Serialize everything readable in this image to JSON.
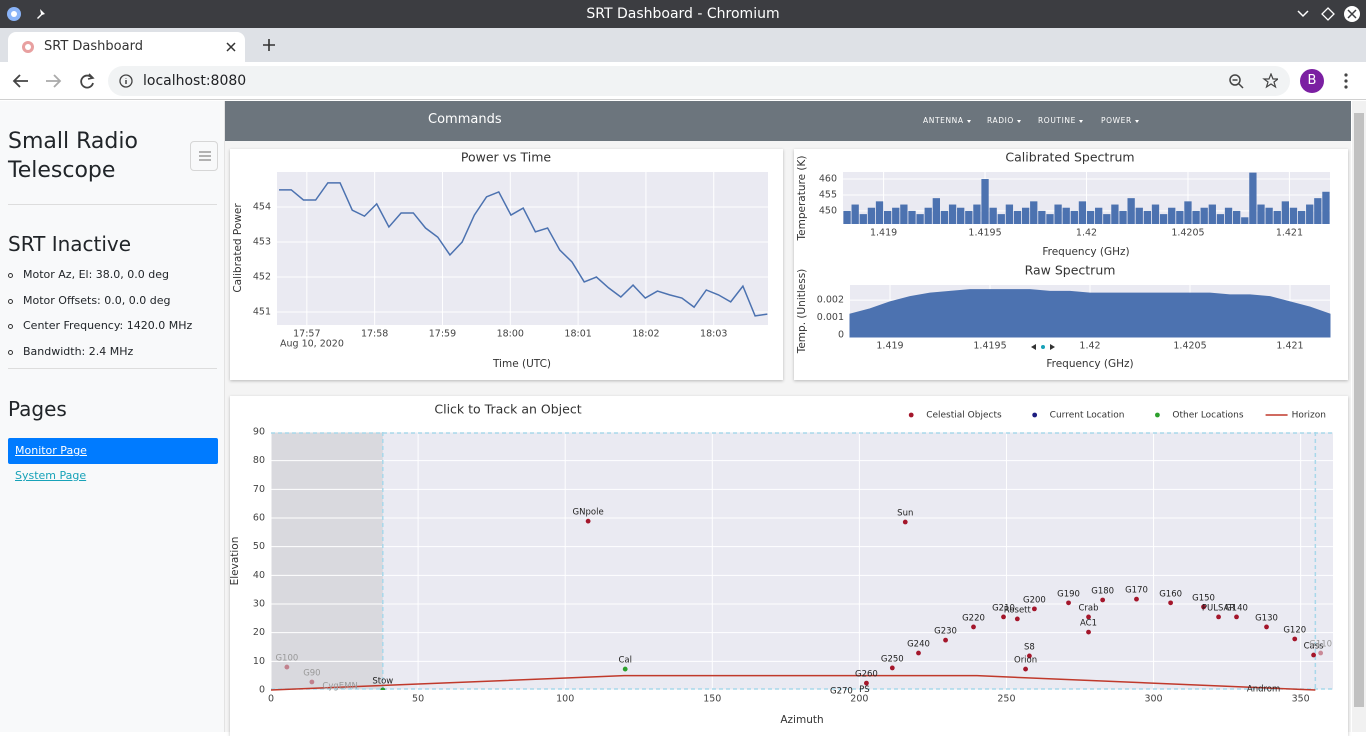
{
  "window": {
    "title": "SRT Dashboard - Chromium"
  },
  "tab": {
    "title": "SRT Dashboard"
  },
  "address_bar": {
    "url": "localhost:8080"
  },
  "profile": {
    "initial": "B"
  },
  "sidebar": {
    "title": "Small Radio Telescope",
    "status": "SRT Inactive",
    "status_items": [
      "Motor Az, El: 38.0, 0.0 deg",
      "Motor Offsets: 0.0, 0.0 deg",
      "Center Frequency: 1420.0 MHz",
      "Bandwidth: 2.4 MHz"
    ],
    "pages_heading": "Pages",
    "pages": [
      "Monitor Page",
      "System Page"
    ]
  },
  "navbar": {
    "title": "Commands",
    "menus": [
      "ANTENNA",
      "RADIO",
      "ROUTINE",
      "POWER"
    ]
  },
  "chart_data": [
    {
      "type": "line",
      "title": "Power vs Time",
      "x_label": "Time (UTC)",
      "y_label": "Calibrated Power",
      "x_date_label": "Aug 10, 2020",
      "color": "#4c72b0",
      "grid": true,
      "x": [
        1076.59,
        1076.77,
        1076.95,
        1077.13,
        1077.31,
        1077.49,
        1077.67,
        1077.85,
        1078.03,
        1078.21,
        1078.39,
        1078.57,
        1078.75,
        1078.93,
        1079.11,
        1079.29,
        1079.47,
        1079.65,
        1079.83,
        1080.01,
        1080.19,
        1080.37,
        1080.55,
        1080.73,
        1080.91,
        1081.09,
        1081.27,
        1081.45,
        1081.63,
        1081.81,
        1081.99,
        1082.17,
        1082.35,
        1082.53,
        1082.71,
        1082.89,
        1083.07,
        1083.25,
        1083.43,
        1083.61,
        1083.79
      ],
      "values": [
        454.49,
        454.49,
        454.2,
        454.2,
        454.69,
        454.69,
        453.91,
        453.74,
        454.09,
        453.43,
        453.83,
        453.83,
        453.4,
        453.14,
        452.63,
        453.0,
        453.77,
        454.29,
        454.43,
        453.77,
        453.97,
        453.29,
        453.4,
        452.77,
        452.43,
        451.86,
        452.0,
        451.69,
        451.43,
        451.77,
        451.4,
        451.6,
        451.49,
        451.4,
        451.14,
        451.63,
        451.49,
        451.29,
        451.74,
        450.89,
        450.94
      ],
      "xlim": [
        1076.56,
        1083.8
      ],
      "ylim": [
        450.63,
        455
      ],
      "xticks": [
        {
          "value": 1077,
          "label": "17:57"
        },
        {
          "value": 1078,
          "label": "17:58"
        },
        {
          "value": 1079,
          "label": "17:59"
        },
        {
          "value": 1080,
          "label": "18:00"
        },
        {
          "value": 1081,
          "label": "18:01"
        },
        {
          "value": 1082,
          "label": "18:02"
        },
        {
          "value": 1083,
          "label": "18:03"
        }
      ],
      "yticks": [
        451,
        452,
        453,
        454
      ]
    },
    {
      "type": "bar",
      "title": "Calibrated Spectrum",
      "x_label": "Frequency (GHz)",
      "y_label": "Temperature (K)",
      "color": "#4c72b0",
      "grid": true,
      "x": [
        1.41882,
        1.41886,
        1.4189,
        1.41894,
        1.41898,
        1.41902,
        1.41906,
        1.4191,
        1.41914,
        1.41918,
        1.41922,
        1.41926,
        1.4193,
        1.41934,
        1.41938,
        1.41942,
        1.41946,
        1.4195,
        1.41954,
        1.41958,
        1.41962,
        1.41966,
        1.4197,
        1.41974,
        1.41978,
        1.41982,
        1.41986,
        1.4199,
        1.41994,
        1.41998,
        1.42002,
        1.42006,
        1.4201,
        1.42014,
        1.42018,
        1.42022,
        1.42026,
        1.4203,
        1.42034,
        1.42038,
        1.42042,
        1.42046,
        1.4205,
        1.42054,
        1.42058,
        1.42062,
        1.42066,
        1.4207,
        1.42074,
        1.42078,
        1.42082,
        1.42086,
        1.4209,
        1.42094,
        1.42098,
        1.42102,
        1.42106,
        1.4211,
        1.42114,
        1.42118
      ],
      "values": [
        450,
        452,
        449,
        451,
        453,
        450,
        451,
        452,
        450,
        449,
        451,
        454,
        450,
        452,
        451,
        450,
        452,
        460,
        451,
        449,
        452,
        450,
        451,
        453,
        450,
        449,
        452,
        451,
        450,
        453,
        450,
        451,
        449,
        452,
        450,
        454,
        451,
        450,
        452,
        449,
        451,
        450,
        453,
        450,
        451,
        452,
        449,
        451,
        450,
        448,
        462,
        452,
        451,
        450,
        453,
        451,
        450,
        452,
        454,
        456
      ],
      "xlim": [
        1.4188,
        1.4212
      ],
      "ylim": [
        445.9,
        462.2
      ],
      "xticks": [
        1.419,
        1.4195,
        1.42,
        1.4205,
        1.421
      ],
      "yticks": [
        450,
        455,
        460
      ]
    },
    {
      "type": "area",
      "title": "Raw Spectrum",
      "x_label": "Frequency (GHz)",
      "y_label": "Temp. (Unitless)",
      "color": "#4c72b0",
      "grid": true,
      "x": [
        1.4188,
        1.4189,
        1.419,
        1.4191,
        1.4192,
        1.4193,
        1.4194,
        1.4195,
        1.4196,
        1.4197,
        1.4198,
        1.4199,
        1.42,
        1.4201,
        1.4202,
        1.4203,
        1.4204,
        1.4205,
        1.4206,
        1.4207,
        1.4208,
        1.4209,
        1.421,
        1.4211,
        1.4212
      ],
      "values": [
        0.0012,
        0.0015,
        0.0019,
        0.0022,
        0.0024,
        0.0025,
        0.0026,
        0.0026,
        0.0026,
        0.0026,
        0.0025,
        0.0025,
        0.0024,
        0.0024,
        0.0024,
        0.0024,
        0.0024,
        0.0024,
        0.0024,
        0.0023,
        0.0023,
        0.0022,
        0.0019,
        0.0016,
        0.0012
      ],
      "xlim": [
        1.4188,
        1.4212
      ],
      "ylim": [
        -0.0001,
        0.00286
      ],
      "xticks": [
        1.419,
        1.4195,
        1.42,
        1.4205,
        1.421
      ],
      "yticks": [
        0,
        0.001,
        0.002
      ]
    },
    {
      "type": "scatter",
      "title": "Click to Track an Object",
      "x_label": "Azimuth",
      "y_label": "Elevation",
      "grid": true,
      "legend": "top-right",
      "xlim": [
        0,
        361
      ],
      "ylim": [
        0,
        90
      ],
      "az_limits": [
        38,
        355
      ],
      "xticks": [
        0,
        50,
        100,
        150,
        200,
        250,
        300,
        350
      ],
      "yticks": [
        0,
        10,
        20,
        30,
        40,
        50,
        60,
        70,
        80,
        90
      ],
      "series": [
        {
          "name": "Celestial Objects",
          "color": "#a4162b",
          "labels": [
            "GNpole",
            "Sun",
            "G200",
            "G190",
            "G180",
            "G170",
            "G160",
            "G150",
            "Crab",
            "Rosett",
            "G210",
            "G220",
            "G230",
            "G240",
            "G250",
            "G260",
            "G270",
            "PS",
            "AC1",
            "S8",
            "Orion",
            "PULSAR",
            "G140",
            "G130",
            "G120",
            "Cass",
            "G110",
            "Androm",
            "G100",
            "G90",
            "CygEMN"
          ],
          "x": [
            107.8,
            215.6,
            259.5,
            271.1,
            282.7,
            294.2,
            305.8,
            317,
            277.9,
            253.7,
            249,
            238.8,
            229.3,
            220.1,
            211.2,
            202.4,
            193.9,
            201.7,
            277.9,
            257.8,
            256.5,
            322.1,
            328.2,
            338.4,
            348,
            354.4,
            356.8,
            337.4,
            5.4,
            13.9,
            23.5
          ],
          "values": [
            58.9,
            58.6,
            28.3,
            30.4,
            31.4,
            31.7,
            30.4,
            29,
            25.5,
            24.8,
            25.5,
            22,
            17.4,
            12.9,
            7.7,
            2.4,
            -3.5,
            -3,
            20.2,
            11.9,
            7.3,
            25.5,
            25.5,
            22,
            17.8,
            12.2,
            12.9,
            -2.8,
            8,
            2.8,
            -1.7
          ]
        },
        {
          "name": "Current Location",
          "color": "#1d1d80",
          "x": [
            38
          ],
          "values": [
            0
          ]
        },
        {
          "name": "Other Locations",
          "color": "#2ca02c",
          "labels": [
            "Stow",
            "Cal"
          ],
          "x": [
            38,
            120.4
          ],
          "values": [
            0,
            7.3
          ]
        },
        {
          "name": "Horizon",
          "type": "line",
          "color": "#c0392b",
          "x": [
            0,
            120,
            240,
            355
          ],
          "values": [
            0,
            5,
            5,
            0
          ]
        }
      ]
    }
  ]
}
